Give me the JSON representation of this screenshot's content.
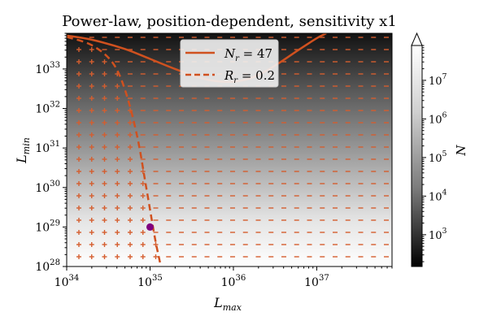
{
  "chart_data": {
    "type": "heatmap",
    "title": "Power-law, position-dependent, sensitivity x1",
    "xlabel": "L",
    "xlabel_sub": "max",
    "ylabel": "L",
    "ylabel_sub": "min",
    "x_scale": "log",
    "y_scale": "log",
    "xlim": [
      1e+34,
      8e+37
    ],
    "ylim": [
      1e+28,
      8e+33
    ],
    "x_ticks": [
      {
        "base": "10",
        "exp": "34",
        "value": 1e+34
      },
      {
        "base": "10",
        "exp": "35",
        "value": 1e+35
      },
      {
        "base": "10",
        "exp": "36",
        "value": 1e+36
      },
      {
        "base": "10",
        "exp": "37",
        "value": 1e+37
      }
    ],
    "y_ticks": [
      {
        "base": "10",
        "exp": "28",
        "value": 1e+28
      },
      {
        "base": "10",
        "exp": "29",
        "value": 1e+29
      },
      {
        "base": "10",
        "exp": "30",
        "value": 1e+30
      },
      {
        "base": "10",
        "exp": "31",
        "value": 1e+31
      },
      {
        "base": "10",
        "exp": "32",
        "value": 1e+32
      },
      {
        "base": "10",
        "exp": "33",
        "value": 1e+33
      }
    ],
    "colormap": "gray",
    "colorbar": {
      "label": "N",
      "scale": "log",
      "range": [
        150,
        80000000.0
      ],
      "extend": "max",
      "ticks": [
        {
          "base": "10",
          "exp": "3",
          "value": 1000.0
        },
        {
          "base": "10",
          "exp": "4",
          "value": 10000.0
        },
        {
          "base": "10",
          "exp": "5",
          "value": 100000.0
        },
        {
          "base": "10",
          "exp": "6",
          "value": 1000000.0
        },
        {
          "base": "10",
          "exp": "7",
          "value": 10000000.0
        }
      ]
    },
    "heatmap_field": {
      "description_values": "N increases toward low L_min; N vs L_min at top ~ dark",
      "N_at_ymin": 80000000.0,
      "N_at_ymax": 150
    },
    "series": [
      {
        "name": "N_r = 47",
        "legend_main": "N",
        "legend_sub": "r",
        "legend_value": " = 47",
        "style": "solid",
        "color": "#d0511f",
        "points": [
          [
            1e+34,
            7e+33
          ],
          [
            2e+34,
            5.5e+33
          ],
          [
            5e+34,
            3.2e+33
          ],
          [
            1e+35,
            1.8e+33
          ],
          [
            2e+35,
            1e+33
          ],
          [
            4e+35,
            6e+32
          ],
          [
            7e+35,
            4.8e+32
          ],
          [
            1.2e+36,
            5e+32
          ],
          [
            2e+36,
            7e+32
          ],
          [
            3.5e+36,
            1.4e+33
          ],
          [
            6e+36,
            3e+33
          ],
          [
            1e+37,
            6e+33
          ],
          [
            1.3e+37,
            8e+33
          ]
        ]
      },
      {
        "name": "R_r = 0.2",
        "legend_main": "R",
        "legend_sub": "r",
        "legend_value": " = 0.2",
        "style": "dashed",
        "color": "#d0511f",
        "points": [
          [
            1e+34,
            6.5e+33
          ],
          [
            2e+34,
            4e+33
          ],
          [
            3.5e+34,
            1.5e+33
          ],
          [
            5e+34,
            3e+32
          ],
          [
            7e+34,
            2e+31
          ],
          [
            9e+34,
            1e+30
          ],
          [
            1.15e+35,
            5e+28
          ],
          [
            1.35e+35,
            1e+28
          ]
        ]
      }
    ],
    "marker_point": {
      "x": 1e+35,
      "y": 1e+29,
      "color": "#800080"
    },
    "grid_markers": {
      "inside_region_symbol": "+",
      "outside_region_symbol": "dash",
      "color_scale_light": "#f4a98a",
      "color_scale_dark": "#d0511f"
    }
  }
}
